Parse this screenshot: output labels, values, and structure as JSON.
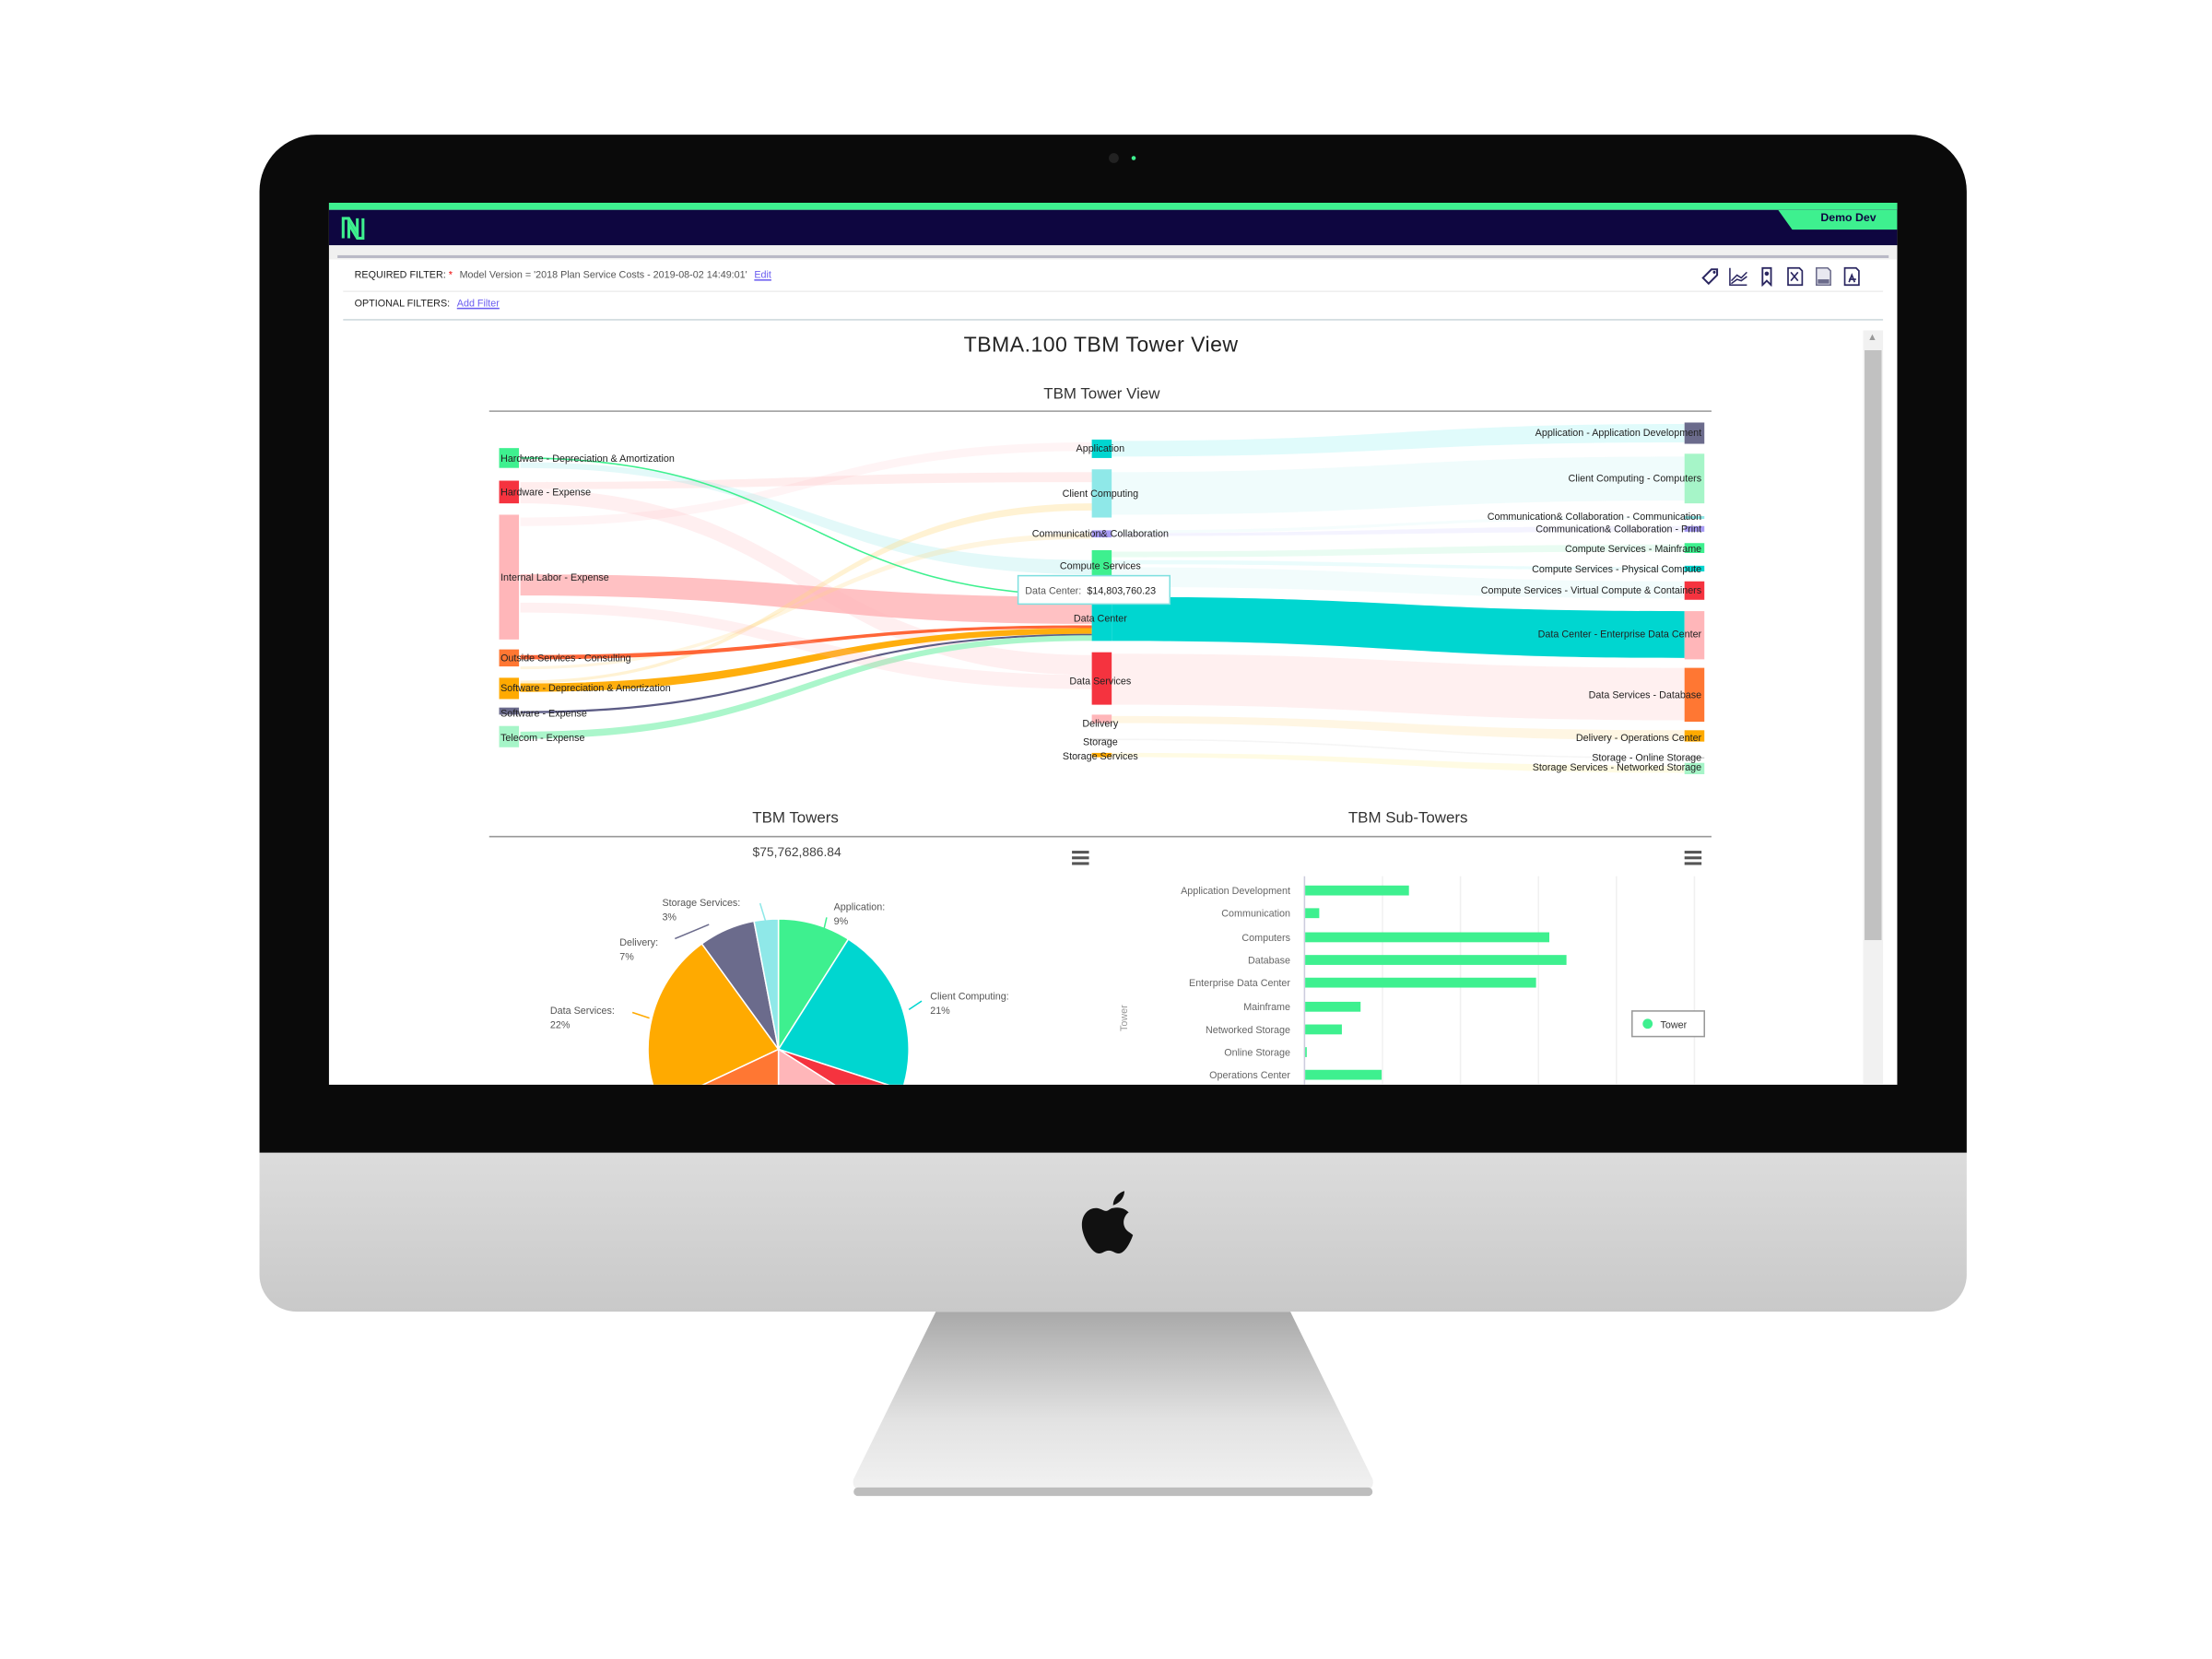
{
  "app": {
    "brand_user": "Demo Dev",
    "logo_letter": "N"
  },
  "filters": {
    "required_label": "REQUIRED FILTER:",
    "required_marker": "*",
    "required_value": "Model Version = '2018 Plan Service Costs - 2019-08-02 14:49:01'",
    "edit_link": "Edit",
    "optional_label": "OPTIONAL FILTERS:",
    "add_filter_link": "Add Filter"
  },
  "toolbar": {
    "icons": [
      "tag-icon",
      "line-chart-icon",
      "bookmark-icon",
      "excel-export-icon",
      "csv-export-icon",
      "pdf-export-icon"
    ]
  },
  "report": {
    "title": "TBMA.100 TBM Tower View"
  },
  "colors": {
    "accent_green": "#3ef08f",
    "header_navy": "#0e0640",
    "teal": "#00d6d0",
    "red": "#f5333f",
    "orange": "#ffaa00"
  },
  "chart_data": [
    {
      "type": "sankey",
      "title": "TBM Tower View",
      "sources": [
        "Hardware - Depreciation & Amortization",
        "Hardware - Expense",
        "Internal Labor - Expense",
        "Outside Services - Consulting",
        "Software - Depreciation & Amortization",
        "Software - Expense",
        "Telecom - Expense"
      ],
      "towers": [
        "Application",
        "Client Computing",
        "Communication& Collaboration",
        "Compute Services",
        "Data Center",
        "Data Services",
        "Delivery",
        "Storage",
        "Storage Services"
      ],
      "sub_towers": [
        "Application - Application Development",
        "Client Computing - Computers",
        "Communication& Collaboration - Communication",
        "Communication& Collaboration - Print",
        "Compute Services - Mainframe",
        "Compute Services - Physical Compute",
        "Compute Services - Virtual Compute & Containers",
        "Data Center - Enterprise Data Center",
        "Data Services - Database",
        "Delivery - Operations Center",
        "Storage - Online Storage",
        "Storage Services - Networked Storage"
      ],
      "tooltip": {
        "label": "Data Center:",
        "value": "$14,803,760.23"
      }
    },
    {
      "type": "pie",
      "title": "TBM Towers",
      "subtitle": "$75,762,886.84",
      "slices": [
        {
          "label": "Application:",
          "pct_label": "9%",
          "value": 9,
          "color": "#3ef08f"
        },
        {
          "label": "Client Computing:",
          "pct_label": "21%",
          "value": 21,
          "color": "#00d6d0"
        },
        {
          "label": "",
          "pct_label": "",
          "value": 4,
          "color": "#f5333f"
        },
        {
          "label": "",
          "pct_label": "",
          "value": 16,
          "color": "#ffb6b9"
        },
        {
          "label": "",
          "pct_label": "",
          "value": 18,
          "color": "#ff7733"
        },
        {
          "label": "Data Services:",
          "pct_label": "22%",
          "value": 22,
          "color": "#ffaa00"
        },
        {
          "label": "Delivery:",
          "pct_label": "7%",
          "value": 7,
          "color": "#6b6b8c"
        },
        {
          "label": "Storage Services:",
          "pct_label": "3%",
          "value": 3,
          "color": "#8fe8e8"
        }
      ]
    },
    {
      "type": "bar",
      "orientation": "horizontal",
      "title": "TBM Sub-Towers",
      "ylabel": "Tower",
      "legend": {
        "label": "Tower",
        "placement": "right"
      },
      "categories": [
        "Application Development",
        "Communication",
        "Computers",
        "Database",
        "Enterprise Data Center",
        "Mainframe",
        "Networked Storage",
        "Online Storage",
        "Operations Center"
      ],
      "values": [
        1.33,
        0.18,
        3.13,
        3.35,
        2.96,
        0.71,
        0.47,
        0.02,
        0.98
      ],
      "xlim": [
        0,
        5
      ],
      "grid": true,
      "color": "#3ef08f"
    }
  ]
}
